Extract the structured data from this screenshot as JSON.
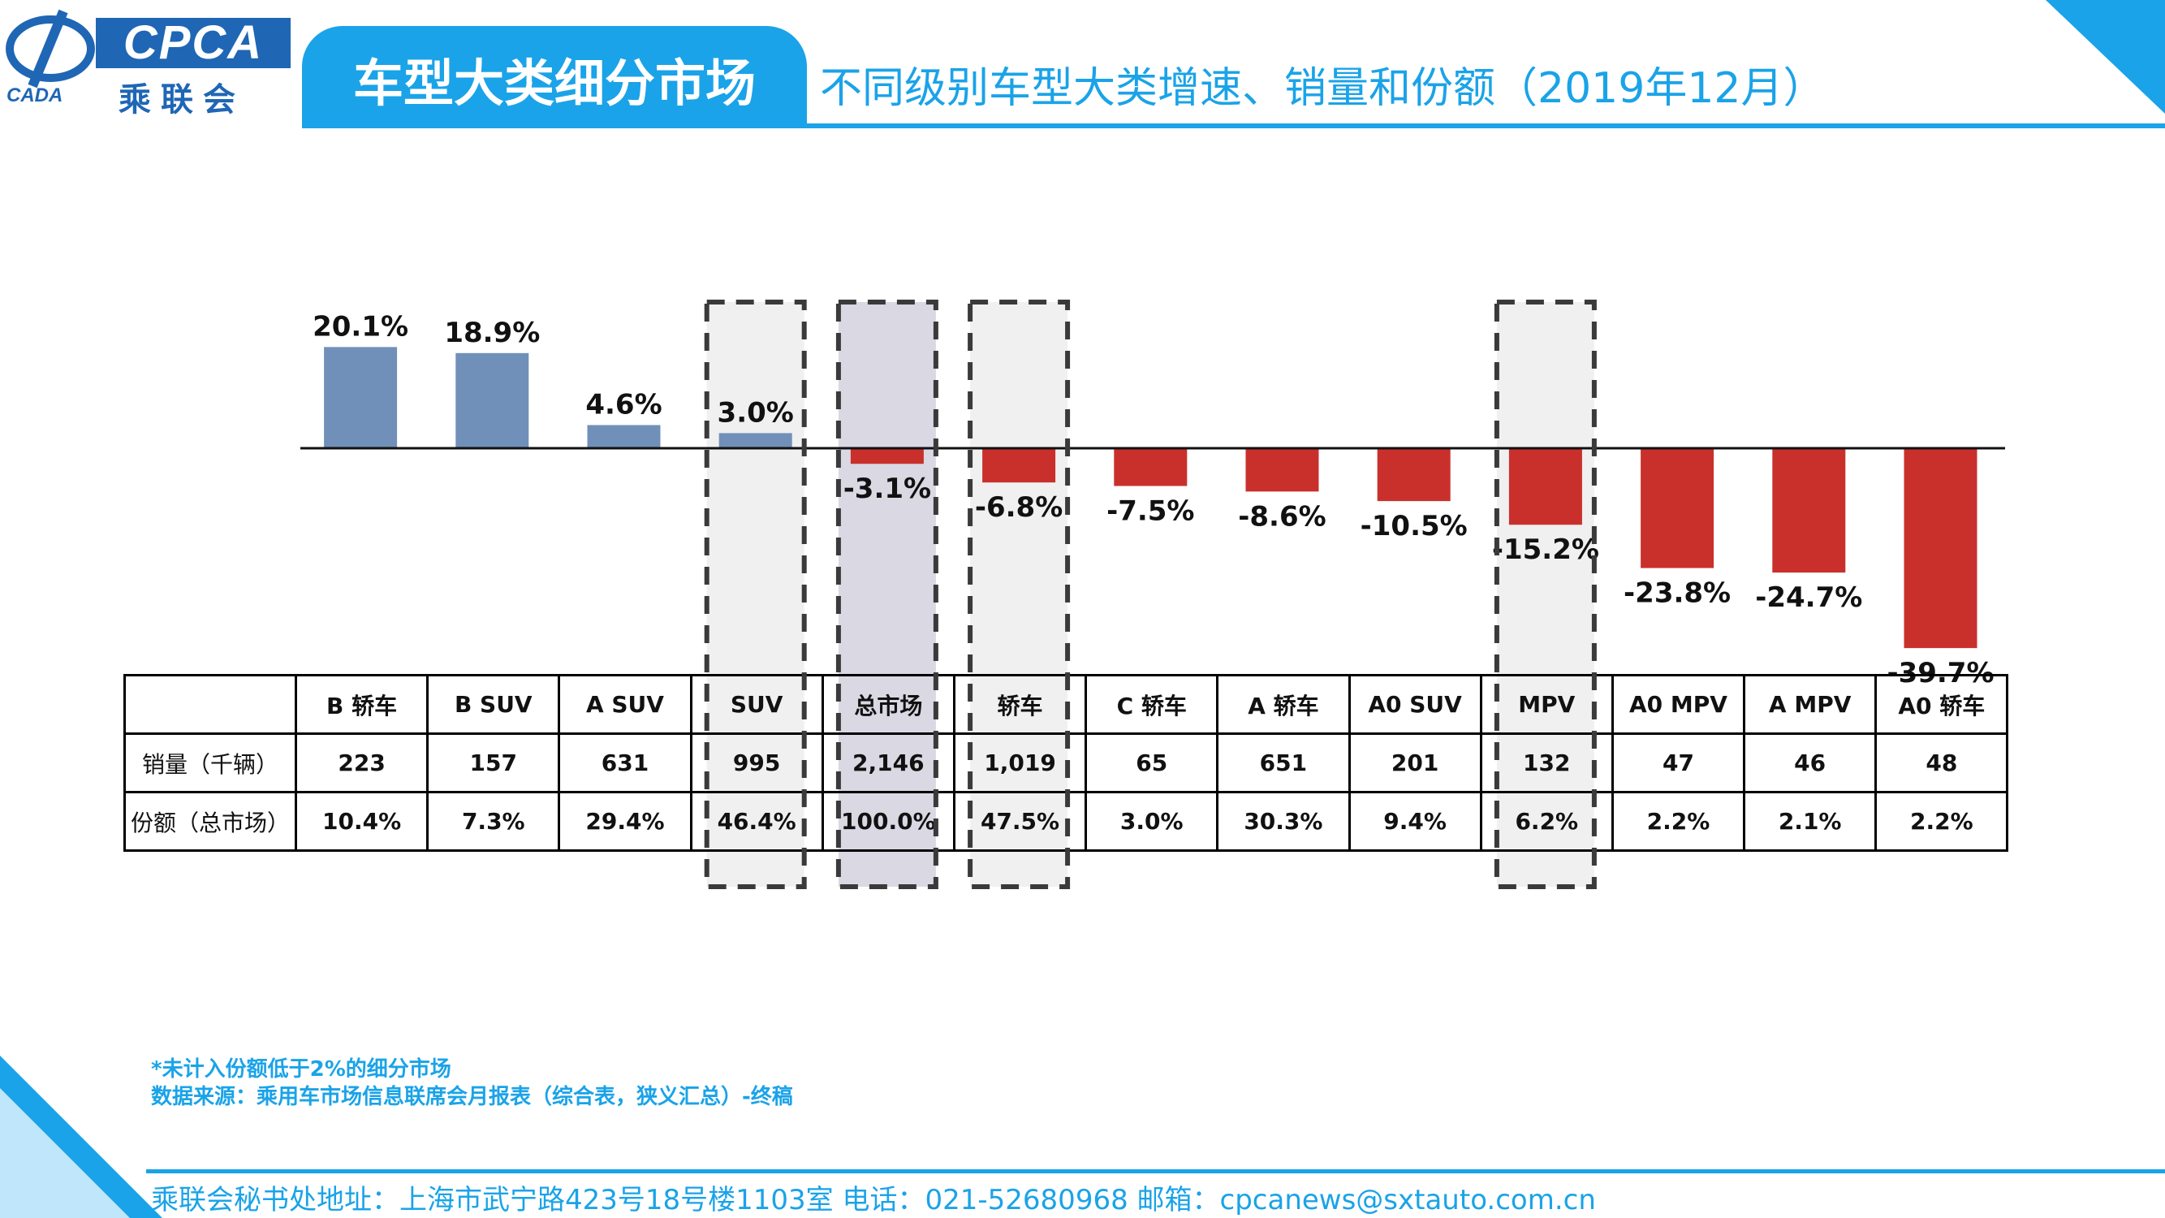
{
  "header": {
    "logo_en": "CPCA",
    "logo_cn": "乘联会",
    "logo_small": "CADA",
    "title": "车型大类细分市场",
    "subtitle": "不同级别车型大类增速、销量和份额（2019年12月）"
  },
  "colors": {
    "accent": "#1aa3e8",
    "positive_bar": "#7190b9",
    "negative_bar": "#c9302c",
    "highlight_fill": "#f0f0f0",
    "total_fill": "#d9d8e3"
  },
  "chart_data": {
    "type": "bar",
    "title": "",
    "xlabel": "",
    "ylabel": "",
    "categories": [
      "B 轿车",
      "B SUV",
      "A SUV",
      "SUV",
      "总市场",
      "轿车",
      "C 轿车",
      "A 轿车",
      "A0 SUV",
      "MPV",
      "A0 MPV",
      "A MPV",
      "A0 轿车"
    ],
    "values": [
      20.1,
      18.9,
      4.6,
      3.0,
      -3.1,
      -6.8,
      -7.5,
      -8.6,
      -10.5,
      -15.2,
      -23.8,
      -24.7,
      -39.7
    ],
    "labels": [
      "20.1%",
      "18.9%",
      "4.6%",
      "3.0%",
      "-3.1%",
      "-6.8%",
      "-7.5%",
      "-8.6%",
      "-10.5%",
      "-15.2%",
      "-23.8%",
      "-24.7%",
      "-39.7%"
    ],
    "highlighted": [
      "SUV",
      "总市场",
      "轿车",
      "MPV"
    ],
    "grid": false,
    "legend": "none"
  },
  "table": {
    "rows": [
      {
        "label": "销量（千辆）",
        "values": [
          "223",
          "157",
          "631",
          "995",
          "2,146",
          "1,019",
          "65",
          "651",
          "201",
          "132",
          "47",
          "46",
          "48"
        ]
      },
      {
        "label": "份额（总市场）",
        "values": [
          "10.4%",
          "7.3%",
          "29.4%",
          "46.4%",
          "100.0%",
          "47.5%",
          "3.0%",
          "30.3%",
          "9.4%",
          "6.2%",
          "2.2%",
          "2.1%",
          "2.2%"
        ]
      }
    ]
  },
  "footer": {
    "note": "*未计入份额低于2%的细分市场",
    "source": "数据来源：乘用车市场信息联席会月报表（综合表，狭义汇总）-终稿",
    "address": "乘联会秘书处地址：上海市武宁路423号18号楼1103室  电话：021-52680968   邮箱：cpcanews@sxtauto.com.cn"
  }
}
